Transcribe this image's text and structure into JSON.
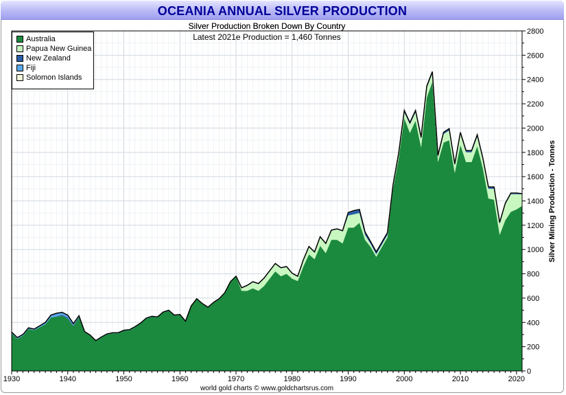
{
  "header": {
    "title": "OCEANIA ANNUAL SILVER PRODUCTION",
    "subtitle": "Silver Production Broken Down By Country",
    "subtitle2": "Latest 2021e Production = 1,460 Tonnes"
  },
  "footer": "world gold charts © www.goldchartsrus.com",
  "legend": [
    {
      "name": "Australia",
      "color": "#1b8a3e"
    },
    {
      "name": "Papua New Guinea",
      "color": "#c8f7c0"
    },
    {
      "name": "New Zealand",
      "color": "#2b5ea8"
    },
    {
      "name": "Fiji",
      "color": "#58a8e8"
    },
    {
      "name": "Solomon Islands",
      "color": "#f2f8d8"
    }
  ],
  "chart_data": {
    "type": "area",
    "stacked": true,
    "title": "OCEANIA ANNUAL SILVER PRODUCTION",
    "ylabel": "Silver Mining Production - Tonnes",
    "xlabel": "",
    "xlim": [
      1930,
      2021
    ],
    "ylim": [
      0,
      2800
    ],
    "x_ticks": [
      1930,
      1940,
      1950,
      1960,
      1970,
      1980,
      1990,
      2000,
      2010,
      2020
    ],
    "y_ticks": [
      0,
      200,
      400,
      600,
      800,
      1000,
      1200,
      1400,
      1600,
      1800,
      2000,
      2200,
      2400,
      2600,
      2800
    ],
    "x": [
      1930,
      1931,
      1932,
      1933,
      1934,
      1935,
      1936,
      1937,
      1938,
      1939,
      1940,
      1941,
      1942,
      1943,
      1944,
      1945,
      1946,
      1947,
      1948,
      1949,
      1950,
      1951,
      1952,
      1953,
      1954,
      1955,
      1956,
      1957,
      1958,
      1959,
      1960,
      1961,
      1962,
      1963,
      1964,
      1965,
      1966,
      1967,
      1968,
      1969,
      1970,
      1971,
      1972,
      1973,
      1974,
      1975,
      1976,
      1977,
      1978,
      1979,
      1980,
      1981,
      1982,
      1983,
      1984,
      1985,
      1986,
      1987,
      1988,
      1989,
      1990,
      1991,
      1992,
      1993,
      1994,
      1995,
      1996,
      1997,
      1998,
      1999,
      2000,
      2001,
      2002,
      2003,
      2004,
      2005,
      2006,
      2007,
      2008,
      2009,
      2010,
      2011,
      2012,
      2013,
      2014,
      2015,
      2016,
      2017,
      2018,
      2019,
      2020,
      2021
    ],
    "series": [
      {
        "name": "Australia",
        "values": [
          310,
          265,
          290,
          345,
          335,
          360,
          385,
          440,
          445,
          455,
          430,
          370,
          440,
          320,
          290,
          245,
          275,
          300,
          310,
          310,
          330,
          335,
          360,
          390,
          430,
          445,
          440,
          480,
          495,
          455,
          460,
          405,
          530,
          590,
          550,
          520,
          560,
          590,
          640,
          730,
          775,
          660,
          660,
          680,
          660,
          700,
          760,
          820,
          780,
          800,
          760,
          740,
          860,
          960,
          920,
          1030,
          970,
          1080,
          1080,
          1050,
          1180,
          1180,
          1220,
          1080,
          1020,
          940,
          1020,
          1100,
          1500,
          1750,
          2080,
          1960,
          2060,
          1840,
          2250,
          2380,
          1720,
          1880,
          1900,
          1630,
          1860,
          1720,
          1720,
          1850,
          1670,
          1420,
          1410,
          1120,
          1240,
          1310,
          1330,
          1360
        ]
      },
      {
        "name": "Papua New Guinea",
        "values": [
          0,
          0,
          0,
          0,
          0,
          0,
          0,
          0,
          0,
          0,
          0,
          0,
          0,
          0,
          0,
          0,
          0,
          0,
          0,
          0,
          0,
          0,
          0,
          0,
          0,
          0,
          0,
          0,
          0,
          0,
          0,
          0,
          0,
          0,
          0,
          0,
          0,
          0,
          0,
          0,
          0,
          20,
          40,
          50,
          55,
          60,
          60,
          60,
          65,
          55,
          40,
          35,
          50,
          60,
          55,
          70,
          75,
          75,
          85,
          100,
          100,
          110,
          80,
          40,
          25,
          20,
          20,
          20,
          20,
          30,
          50,
          70,
          70,
          70,
          80,
          70,
          40,
          70,
          80,
          60,
          90,
          80,
          80,
          80,
          70,
          80,
          90,
          90,
          130,
          145,
          125,
          95
        ]
      },
      {
        "name": "New Zealand",
        "values": [
          0,
          0,
          0,
          0,
          0,
          0,
          0,
          0,
          5,
          8,
          10,
          5,
          5,
          0,
          0,
          0,
          0,
          0,
          0,
          0,
          0,
          0,
          0,
          0,
          0,
          0,
          0,
          0,
          0,
          0,
          0,
          0,
          0,
          0,
          0,
          0,
          0,
          0,
          0,
          0,
          0,
          0,
          0,
          0,
          0,
          0,
          0,
          0,
          0,
          0,
          0,
          0,
          0,
          0,
          0,
          0,
          0,
          0,
          0,
          0,
          20,
          25,
          25,
          20,
          15,
          15,
          15,
          15,
          10,
          10,
          10,
          10,
          10,
          10,
          10,
          10,
          10,
          10,
          10,
          10,
          10,
          10,
          10,
          10,
          10,
          10,
          10,
          8,
          6,
          5,
          5,
          5
        ]
      },
      {
        "name": "Fiji",
        "values": [
          10,
          10,
          10,
          10,
          10,
          12,
          15,
          20,
          25,
          20,
          20,
          15,
          10,
          5,
          5,
          5,
          5,
          5,
          5,
          5,
          5,
          5,
          5,
          5,
          5,
          5,
          5,
          5,
          5,
          5,
          5,
          5,
          5,
          5,
          5,
          5,
          5,
          5,
          5,
          5,
          5,
          5,
          5,
          5,
          5,
          5,
          5,
          5,
          5,
          5,
          5,
          5,
          5,
          5,
          5,
          5,
          5,
          5,
          5,
          5,
          5,
          5,
          5,
          5,
          5,
          5,
          5,
          5,
          5,
          5,
          5,
          5,
          5,
          5,
          5,
          5,
          5,
          5,
          5,
          5,
          5,
          5,
          5,
          5,
          5,
          5,
          5,
          5,
          5,
          5,
          5,
          0
        ]
      },
      {
        "name": "Solomon Islands",
        "values": [
          0,
          0,
          0,
          0,
          0,
          0,
          0,
          0,
          0,
          0,
          0,
          0,
          0,
          0,
          0,
          0,
          0,
          0,
          0,
          0,
          0,
          0,
          0,
          0,
          0,
          0,
          0,
          0,
          0,
          0,
          0,
          0,
          0,
          0,
          0,
          0,
          0,
          0,
          0,
          0,
          0,
          0,
          0,
          0,
          0,
          0,
          0,
          0,
          0,
          0,
          0,
          0,
          0,
          0,
          0,
          0,
          0,
          0,
          0,
          0,
          0,
          0,
          0,
          0,
          0,
          0,
          0,
          0,
          0,
          0,
          0,
          0,
          0,
          0,
          0,
          0,
          0,
          0,
          0,
          0,
          0,
          0,
          0,
          0,
          0,
          0,
          0,
          0,
          0,
          0,
          0,
          0
        ]
      }
    ]
  }
}
